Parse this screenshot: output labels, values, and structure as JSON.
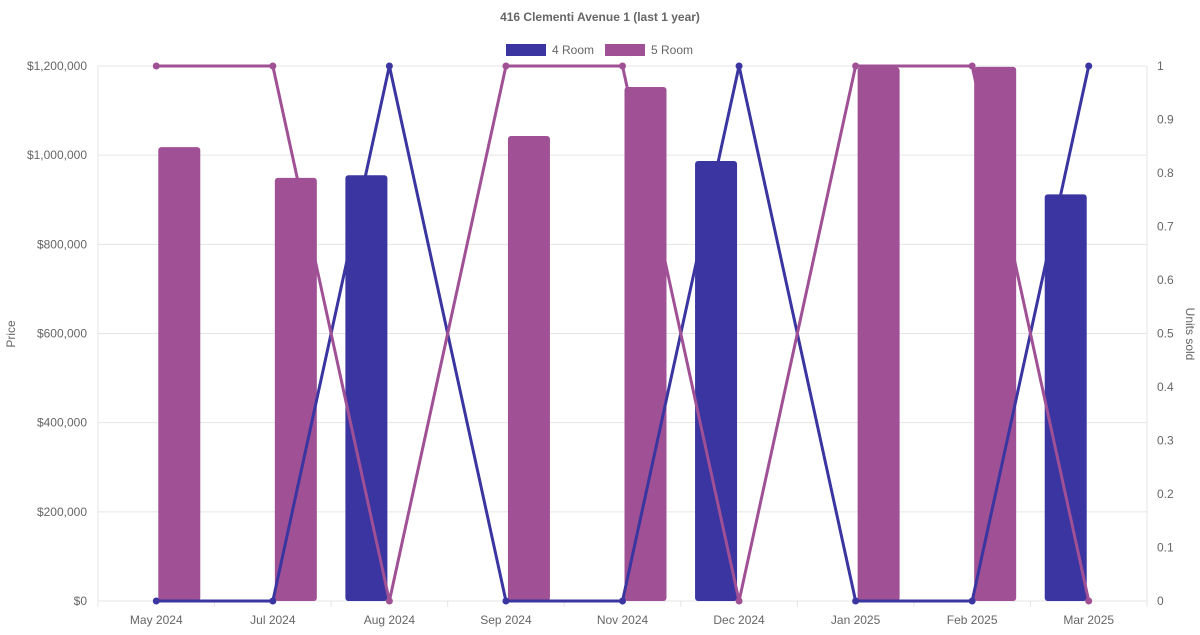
{
  "chart_data": {
    "type": "bar",
    "title": "416 Clementi Avenue 1 (last 1 year)",
    "categories": [
      "May 2024",
      "Jul 2024",
      "Aug 2024",
      "Sep 2024",
      "Nov 2024",
      "Dec 2024",
      "Jan 2025",
      "Feb 2025",
      "Mar 2025"
    ],
    "ylabel": "Price",
    "y2label": "Units sold",
    "ylim": [
      0,
      1200000
    ],
    "y2lim": [
      0,
      1
    ],
    "yticks": [
      "$0",
      "$200,000",
      "$400,000",
      "$600,000",
      "$800,000",
      "$1,000,000",
      "$1,200,000"
    ],
    "y2ticks": [
      "0",
      "0.1",
      "0.2",
      "0.3",
      "0.4",
      "0.5",
      "0.6",
      "0.7",
      "0.8",
      "0.9",
      "1"
    ],
    "legend_position": "top",
    "series": [
      {
        "name": "4 Room",
        "color": "#3a35a0",
        "price": [
          null,
          null,
          955000,
          null,
          null,
          987000,
          null,
          null,
          912000
        ],
        "units": [
          0,
          0,
          1,
          0,
          0,
          1,
          0,
          0,
          1
        ]
      },
      {
        "name": "5 Room",
        "color": "#a05095",
        "price": [
          1018000,
          949000,
          null,
          1043000,
          1153000,
          null,
          1197000,
          1198000,
          null
        ],
        "units": [
          1,
          1,
          0,
          1,
          1,
          0,
          1,
          1,
          0
        ]
      }
    ]
  }
}
